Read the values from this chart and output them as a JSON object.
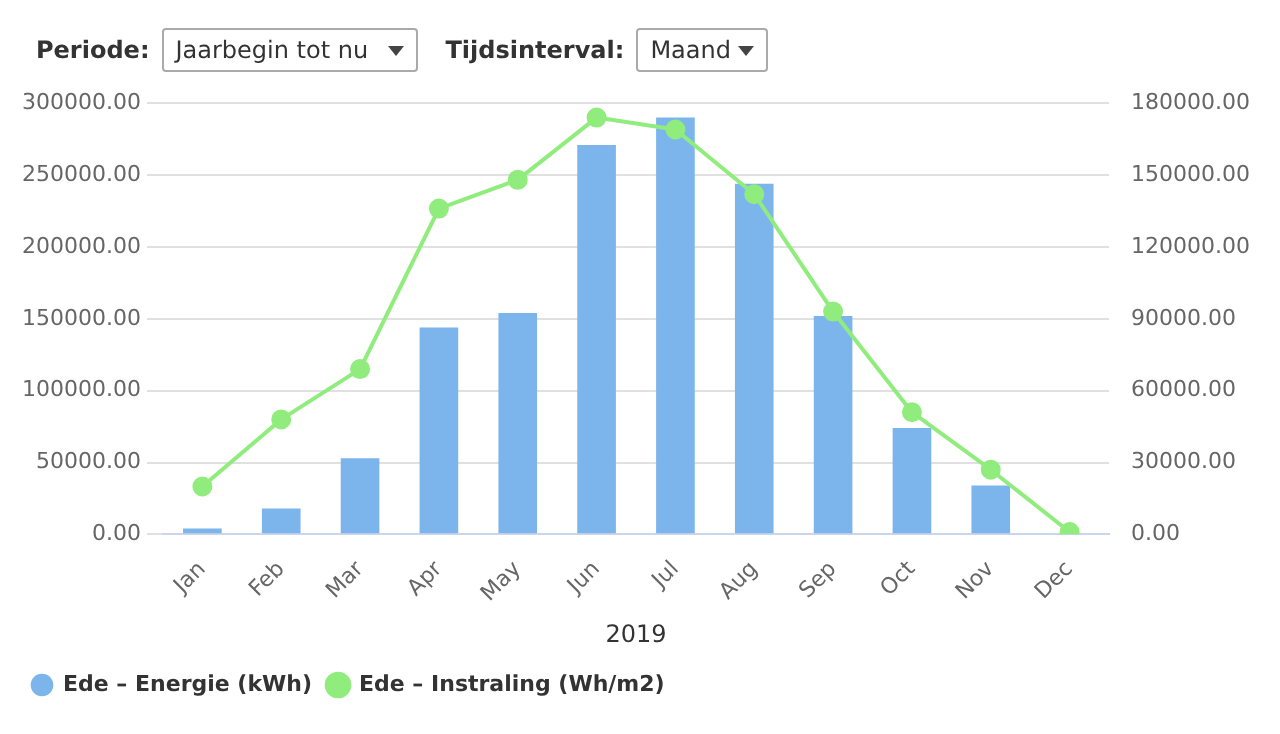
{
  "chart_data": {
    "type": "bar",
    "xlabel": "2019",
    "categories": [
      "Jan",
      "Feb",
      "Mar",
      "Apr",
      "May",
      "Jun",
      "Jul",
      "Aug",
      "Sep",
      "Oct",
      "Nov",
      "Dec"
    ],
    "series": [
      {
        "name": "Ede – Energie (kWh)",
        "color": "#7cb5ec",
        "values": [
          4000,
          18000,
          53000,
          144000,
          154000,
          271000,
          290000,
          244000,
          152000,
          74000,
          34000,
          0
        ]
      },
      {
        "name": "Ede – Instraling (Wh/m2)",
        "type": "line",
        "axis": "y2",
        "color": "#90ed7d",
        "marker": "circle",
        "values": [
          20000,
          48000,
          69000,
          136000,
          148000,
          174000,
          169000,
          142000,
          93000,
          51000,
          27000,
          1000
        ]
      }
    ],
    "ylim": [
      0,
      300000
    ],
    "yticks": [
      {
        "value": 0,
        "label": "0.00"
      },
      {
        "value": 50000,
        "label": "50000.00"
      },
      {
        "value": 100000,
        "label": "100000.00"
      },
      {
        "value": 150000,
        "label": "150000.00"
      },
      {
        "value": 200000,
        "label": "200000.00"
      },
      {
        "value": 250000,
        "label": "250000.00"
      },
      {
        "value": 300000,
        "label": "300000.00"
      }
    ],
    "y2lim": [
      0,
      180000
    ],
    "y2ticks": [
      {
        "value": 0,
        "label": "0.00"
      },
      {
        "value": 30000,
        "label": "30000.00"
      },
      {
        "value": 60000,
        "label": "60000.00"
      },
      {
        "value": 90000,
        "label": "90000.00"
      },
      {
        "value": 120000,
        "label": "120000.00"
      },
      {
        "value": 150000,
        "label": "150000.00"
      },
      {
        "value": 180000,
        "label": "180000.00"
      }
    ],
    "grid": "y",
    "legend": "bottom left",
    "annotations": [
      "Periode:",
      "Jaarbegin tot nu",
      "Tijdsinterval:",
      "Maand"
    ]
  }
}
